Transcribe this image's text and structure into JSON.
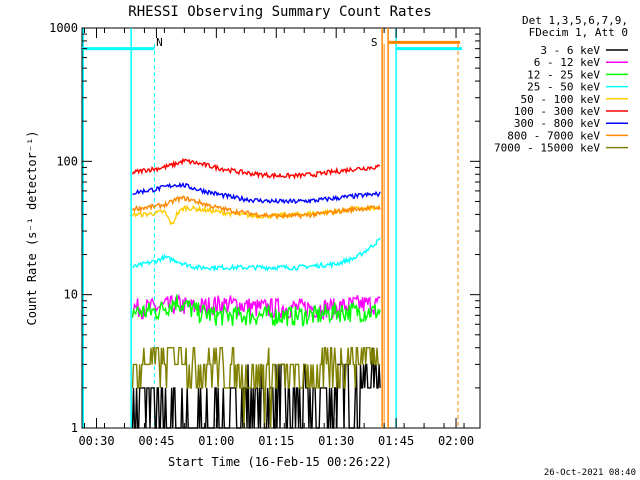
{
  "chart_data": {
    "type": "line",
    "title": "RHESSI Observing Summary Count Rates",
    "xlabel": "Start Time (16-Feb-15 00:26:22)",
    "ylabel": "Count Rate (s⁻¹ detector⁻¹)",
    "yscale": "log",
    "ylim": [
      1,
      1000
    ],
    "xlim": [
      "00:26:22",
      "02:06:00"
    ],
    "x_ticks": [
      "00:30",
      "00:45",
      "01:00",
      "01:15",
      "01:30",
      "01:45",
      "02:00"
    ],
    "y_ticks": [
      "1",
      "10",
      "100",
      "1000"
    ],
    "grid": false,
    "legend_position": "right",
    "legend_header": [
      "Det 1,3,5,6,7,9,",
      "FDecim 1, Att 0"
    ],
    "data_start": "00:39:00",
    "data_end": "01:41:00",
    "series": [
      {
        "name": "3 - 6 keV",
        "color": "#000000",
        "x": [
          "00:39",
          "00:41",
          "00:43",
          "00:45",
          "00:47",
          "00:49",
          "00:55",
          "01:00",
          "01:05",
          "01:07",
          "01:10",
          "01:15",
          "01:20",
          "01:25",
          "01:27",
          "01:30",
          "01:32",
          "01:35",
          "01:38",
          "01:41"
        ],
        "values": [
          1.0,
          1.5,
          2.0,
          1.3,
          1.0,
          1.0,
          1.0,
          1.0,
          1.0,
          1.8,
          1.5,
          1.8,
          1.5,
          1.4,
          1.8,
          2.0,
          2.5,
          2.0,
          2.5,
          2.5
        ]
      },
      {
        "name": "6 - 12 keV",
        "color": "#ff00ff",
        "x": [
          "00:39",
          "00:45",
          "00:50",
          "00:55",
          "01:00",
          "01:05",
          "01:10",
          "01:15",
          "01:20",
          "01:25",
          "01:30",
          "01:35",
          "01:41"
        ],
        "values": [
          8,
          8,
          8.5,
          8,
          8.5,
          8.5,
          8,
          8,
          8,
          8,
          8,
          8.5,
          8.5
        ]
      },
      {
        "name": "12 - 25 keV",
        "color": "#00ff00",
        "x": [
          "00:39",
          "00:45",
          "00:50",
          "00:55",
          "01:00",
          "01:05",
          "01:10",
          "01:15",
          "01:20",
          "01:25",
          "01:30",
          "01:35",
          "01:41"
        ],
        "values": [
          7.5,
          7.5,
          9,
          7.5,
          7,
          7,
          7,
          7,
          7,
          7,
          7.5,
          7.5,
          7.5
        ]
      },
      {
        "name": "25 - 50 keV",
        "color": "#00ffff",
        "x": [
          "00:39",
          "00:42",
          "00:45",
          "00:47",
          "00:50",
          "00:52",
          "00:55",
          "01:00",
          "01:05",
          "01:10",
          "01:15",
          "01:20",
          "01:25",
          "01:30",
          "01:35",
          "01:38",
          "01:41"
        ],
        "values": [
          16,
          17,
          18,
          19,
          18,
          17,
          16,
          16,
          16,
          16,
          16,
          16,
          16.5,
          17,
          19,
          22,
          26
        ]
      },
      {
        "name": "50 - 100 keV",
        "color": "#ffcc00",
        "x": [
          "00:39",
          "00:42",
          "00:45",
          "00:47",
          "00:49",
          "00:50",
          "00:52",
          "00:55",
          "01:00",
          "01:05",
          "01:10",
          "01:15",
          "01:20",
          "01:25",
          "01:30",
          "01:35",
          "01:41"
        ],
        "values": [
          40,
          40,
          41,
          42,
          33,
          40,
          45,
          44,
          42,
          40,
          39,
          39,
          40,
          41,
          42,
          44,
          44
        ]
      },
      {
        "name": "100 - 300 keV",
        "color": "#ff0000",
        "x": [
          "00:39",
          "00:42",
          "00:45",
          "00:48",
          "00:50",
          "00:52",
          "00:55",
          "01:00",
          "01:05",
          "01:10",
          "01:15",
          "01:20",
          "01:25",
          "01:30",
          "01:35",
          "01:41"
        ],
        "values": [
          82,
          86,
          88,
          92,
          96,
          101,
          97,
          90,
          84,
          80,
          78,
          78,
          80,
          84,
          88,
          91
        ]
      },
      {
        "name": "300 - 800 keV",
        "color": "#0000ff",
        "x": [
          "00:39",
          "00:42",
          "00:45",
          "00:48",
          "00:50",
          "00:52",
          "00:55",
          "01:00",
          "01:05",
          "01:10",
          "01:15",
          "01:20",
          "01:25",
          "01:30",
          "01:35",
          "01:41"
        ],
        "values": [
          58,
          60,
          62,
          65,
          67,
          66,
          62,
          57,
          53,
          51,
          50,
          50,
          51,
          53,
          55,
          57
        ]
      },
      {
        "name": "800 - 7000 keV",
        "color": "#ff8800",
        "x": [
          "00:39",
          "00:42",
          "00:45",
          "00:48",
          "00:50",
          "00:52",
          "00:55",
          "01:00",
          "01:05",
          "01:10",
          "01:15",
          "01:20",
          "01:25",
          "01:30",
          "01:35",
          "01:41"
        ],
        "values": [
          44,
          45,
          46,
          48,
          52,
          53,
          50,
          45,
          42,
          40,
          39,
          39,
          40,
          42,
          44,
          45
        ]
      },
      {
        "name": "7000 - 15000 keV",
        "color": "#808000",
        "x": [
          "00:39",
          "00:42",
          "00:45",
          "00:47",
          "00:50",
          "00:52",
          "00:55",
          "01:00",
          "01:05",
          "01:10",
          "01:15",
          "01:20",
          "01:25",
          "01:30",
          "01:35",
          "01:41"
        ],
        "values": [
          2.5,
          3.0,
          3.5,
          3.0,
          4.0,
          3.5,
          3.0,
          3.0,
          2.5,
          2.5,
          2.5,
          2.5,
          2.5,
          3.0,
          3.5,
          3.5
        ]
      }
    ],
    "flags": [
      {
        "label": "N",
        "time": "00:44:30",
        "dashed": true,
        "color": "#00ffff"
      },
      {
        "label": "S",
        "time": "01:42:00",
        "dashed": false,
        "color": "#ff8800"
      },
      {
        "label": "",
        "time": "02:00:30",
        "dashed": true,
        "color": "#ff8800"
      }
    ],
    "night_bars": [
      {
        "from": "00:26:22",
        "to": "00:44:30",
        "level": 700,
        "color": "#00ffff"
      },
      {
        "from": "01:45:00",
        "to": "02:01:30",
        "level": 700,
        "color": "#00ffff"
      },
      {
        "from": "01:43:00",
        "to": "02:01:00",
        "level": 780,
        "color": "#ff8800"
      }
    ],
    "boundary_lines": [
      {
        "time": "00:26:40",
        "color": "#00ffff"
      },
      {
        "time": "00:38:40",
        "color": "#00ffff"
      },
      {
        "time": "01:41:30",
        "color": "#ff8800"
      },
      {
        "time": "01:43:00",
        "color": "#ff8800"
      },
      {
        "time": "01:45:00",
        "color": "#00ffff"
      }
    ]
  },
  "footer_timestamp": "26-Oct-2021 08:40"
}
